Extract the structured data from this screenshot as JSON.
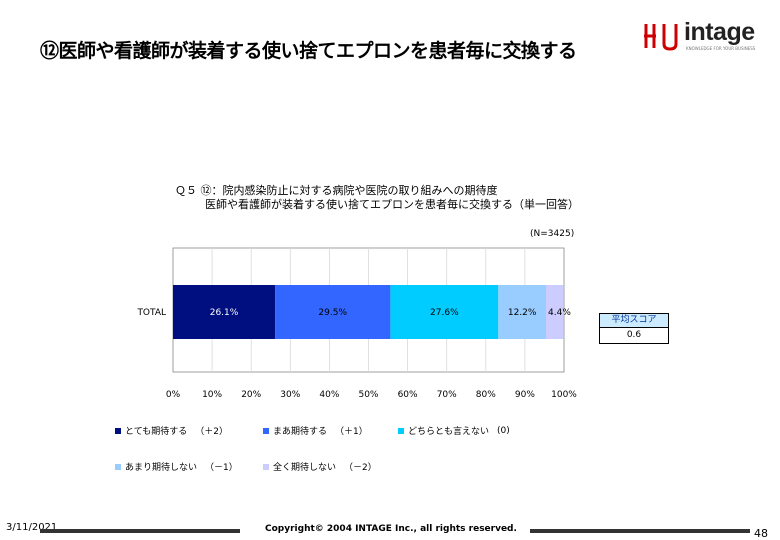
{
  "slide": {
    "title": "⑫医師や看護師が装着する使い捨てエプロンを患者毎に交換する",
    "date": "3/11/2021",
    "copyright": "Copyright© 2004 INTAGE Inc., all rights reserved.",
    "page_number": "48"
  },
  "logo": {
    "text": "intage",
    "tagline": "KNOWLEDGE FOR YOUR BUSINESS",
    "mark_color": "#cc0000"
  },
  "chart_data": {
    "type": "bar",
    "orientation": "horizontal-stacked-100",
    "title_line1": "Ｑ５ ⑫：院内感染防止に対する病院や医院の取り組みへの期待度",
    "title_line2": "医師や看護師が装着する使い捨てエプロンを患者毎に交換する（単一回答）",
    "sample_size": "(N=3425)",
    "categories": [
      "TOTAL"
    ],
    "series": [
      {
        "name": "とても期待する",
        "score": "（＋2）",
        "values": [
          26.1
        ],
        "label": "26.1%",
        "color": "#000f80"
      },
      {
        "name": "まあ期待する",
        "score": "（＋1）",
        "values": [
          29.5
        ],
        "label": "29.5%",
        "color": "#3366ff"
      },
      {
        "name": "どちらとも言えない",
        "score": "(0)",
        "values": [
          27.6
        ],
        "label": "27.6%",
        "color": "#00ccff"
      },
      {
        "name": "あまり期待しない",
        "score": "（－1）",
        "values": [
          12.2
        ],
        "label": "12.2%",
        "color": "#99ccff"
      },
      {
        "name": "全く期待しない",
        "score": "（－2）",
        "values": [
          4.4
        ],
        "label": "4.4%",
        "color": "#ccccff"
      }
    ],
    "xlim": [
      0,
      100
    ],
    "xticks": [
      "0%",
      "10%",
      "20%",
      "30%",
      "40%",
      "50%",
      "60%",
      "70%",
      "80%",
      "90%",
      "100%"
    ],
    "average_score": {
      "label": "平均スコア",
      "value": "0.6"
    }
  }
}
